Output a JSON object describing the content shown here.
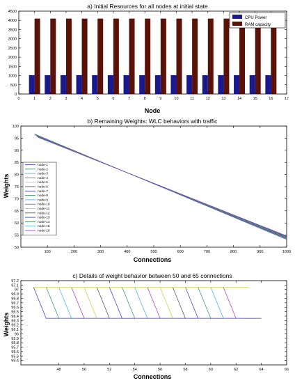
{
  "chart_data": [
    {
      "type": "bar",
      "title": "a) Initial Resources for all nodes at initial state",
      "xlabel": "Node",
      "ylabel": "",
      "xlim": [
        0,
        17
      ],
      "ylim": [
        0,
        4500
      ],
      "xticks": [
        "0",
        "1",
        "2",
        "3",
        "4",
        "5",
        "6",
        "7",
        "8",
        "9",
        "10",
        "11",
        "12",
        "13",
        "14",
        "15",
        "16",
        "17"
      ],
      "yticks": [
        "0",
        "500",
        "1000",
        "1500",
        "2000",
        "2500",
        "3000",
        "3500",
        "4000",
        "4500"
      ],
      "categories": [
        1,
        2,
        3,
        4,
        5,
        6,
        7,
        8,
        9,
        10,
        11,
        12,
        13,
        14,
        15,
        16
      ],
      "series": [
        {
          "name": "CPU Power",
          "color": "#1a1a8c",
          "values": [
            1024,
            1024,
            1024,
            1024,
            1024,
            1024,
            1024,
            1024,
            1024,
            1024,
            1024,
            1024,
            1024,
            1024,
            1024,
            1024
          ]
        },
        {
          "name": "RAM capacity",
          "color": "#5a1208",
          "values": [
            4096,
            4096,
            4096,
            4096,
            4096,
            4096,
            4096,
            4096,
            4096,
            4096,
            4096,
            4096,
            4096,
            4096,
            4096,
            4096
          ]
        }
      ],
      "legend": "top-right",
      "grid": false
    },
    {
      "type": "line",
      "title": "b) Remaining Weights: WLC behaviors  with  traffic",
      "xlabel": "Connections",
      "ylabel": "Weights",
      "xlim": [
        0,
        1000
      ],
      "ylim": [
        50,
        100
      ],
      "xticks": [
        "100",
        "200",
        "300",
        "400",
        "500",
        "600",
        "700",
        "800",
        "900",
        "1000"
      ],
      "yticks": [
        "50",
        "55",
        "60",
        "65",
        "70",
        "75",
        "80",
        "85",
        "90",
        "95",
        "100"
      ],
      "legend": "left-middle",
      "grid": false,
      "series": [
        {
          "name": "node-1",
          "color": "#3030c8",
          "x": [
            50,
            1000
          ],
          "y": [
            96.8,
            53.2
          ]
        },
        {
          "name": "node-2",
          "color": "#2e8b57",
          "x": [
            51,
            1000
          ],
          "y": [
            96.7,
            53.3
          ]
        },
        {
          "name": "node-3",
          "color": "#3aaed8",
          "x": [
            52,
            1000
          ],
          "y": [
            96.6,
            53.4
          ]
        },
        {
          "name": "node-4",
          "color": "#9b30c8",
          "x": [
            53,
            1000
          ],
          "y": [
            96.5,
            53.5
          ]
        },
        {
          "name": "node-5",
          "color": "#c8c830",
          "x": [
            54,
            1000
          ],
          "y": [
            96.4,
            53.6
          ]
        },
        {
          "name": "node-6",
          "color": "#444444",
          "x": [
            55,
            1000
          ],
          "y": [
            96.3,
            53.7
          ]
        },
        {
          "name": "node-7",
          "color": "#3030c8",
          "x": [
            56,
            1000
          ],
          "y": [
            96.2,
            53.8
          ]
        },
        {
          "name": "node-8",
          "color": "#2e8b57",
          "x": [
            57,
            1000
          ],
          "y": [
            96.1,
            53.9
          ]
        },
        {
          "name": "node-9",
          "color": "#3aaed8",
          "x": [
            58,
            1000
          ],
          "y": [
            96.0,
            54.0
          ]
        },
        {
          "name": "node-10",
          "color": "#9b30c8",
          "x": [
            59,
            1000
          ],
          "y": [
            95.9,
            54.1
          ]
        },
        {
          "name": "node-11",
          "color": "#c8c830",
          "x": [
            60,
            1000
          ],
          "y": [
            95.8,
            54.2
          ]
        },
        {
          "name": "node-12",
          "color": "#444444",
          "x": [
            61,
            1000
          ],
          "y": [
            95.7,
            54.3
          ]
        },
        {
          "name": "node-13",
          "color": "#3030c8",
          "x": [
            62,
            1000
          ],
          "y": [
            95.6,
            54.4
          ]
        },
        {
          "name": "node-14",
          "color": "#2e8b57",
          "x": [
            63,
            1000
          ],
          "y": [
            95.5,
            54.5
          ]
        },
        {
          "name": "node-15",
          "color": "#3aaed8",
          "x": [
            64,
            1000
          ],
          "y": [
            95.4,
            54.6
          ]
        },
        {
          "name": "node-16",
          "color": "#9b30c8",
          "x": [
            65,
            1000
          ],
          "y": [
            95.3,
            54.7
          ]
        }
      ]
    },
    {
      "type": "line",
      "title": "c) Details of weight behavior between 50 and 65 connections",
      "xlabel": "Connections",
      "ylabel": "Weights",
      "xlim": [
        45,
        66
      ],
      "ylim": [
        95.3,
        97.2
      ],
      "xticks": [
        "48",
        "50",
        "52",
        "54",
        "56",
        "58",
        "60",
        "62",
        "64",
        "66"
      ],
      "yticks": [
        "95.4",
        "95.5",
        "95.6",
        "95.7",
        "95.8",
        "95.9",
        "96",
        "96.1",
        "96.2",
        "96.3",
        "96.4",
        "96.5",
        "96.6",
        "96.7",
        "96.8",
        "96.9",
        "97",
        "97.1",
        "97.2"
      ],
      "grid": false,
      "series": [
        {
          "name": "node-1",
          "color": "#3030c8",
          "x": [
            46,
            47,
            64
          ],
          "y": [
            97.05,
            96.35,
            96.35
          ]
        },
        {
          "name": "node-2",
          "color": "#2e8b57",
          "x": [
            47,
            48,
            48
          ],
          "y": [
            97.05,
            96.35,
            96.35
          ]
        },
        {
          "name": "node-3",
          "color": "#3aaed8",
          "x": [
            48,
            49,
            49
          ],
          "y": [
            97.05,
            96.35,
            96.35
          ]
        },
        {
          "name": "node-4",
          "color": "#9b30c8",
          "x": [
            49,
            50,
            50
          ],
          "y": [
            97.05,
            96.35,
            96.35
          ]
        },
        {
          "name": "node-5",
          "color": "#c8c830",
          "x": [
            50,
            51,
            51
          ],
          "y": [
            97.05,
            96.35,
            96.35
          ]
        },
        {
          "name": "node-6",
          "color": "#444444",
          "x": [
            51,
            52,
            52
          ],
          "y": [
            97.05,
            96.35,
            96.35
          ]
        },
        {
          "name": "node-7",
          "color": "#3030c8",
          "x": [
            52,
            53,
            53
          ],
          "y": [
            97.05,
            96.35,
            96.35
          ]
        },
        {
          "name": "node-8",
          "color": "#2e8b57",
          "x": [
            53,
            54,
            54
          ],
          "y": [
            97.05,
            96.35,
            96.35
          ]
        },
        {
          "name": "node-9",
          "color": "#3aaed8",
          "x": [
            54,
            55,
            55
          ],
          "y": [
            97.05,
            96.35,
            96.35
          ]
        },
        {
          "name": "node-10",
          "color": "#9b30c8",
          "x": [
            55,
            56,
            56
          ],
          "y": [
            97.05,
            96.35,
            96.35
          ]
        },
        {
          "name": "node-11",
          "color": "#c8c830",
          "x": [
            56,
            57,
            57
          ],
          "y": [
            97.05,
            96.35,
            96.35
          ]
        },
        {
          "name": "node-12",
          "color": "#444444",
          "x": [
            57,
            58,
            58
          ],
          "y": [
            97.05,
            96.35,
            96.35
          ]
        },
        {
          "name": "node-13",
          "color": "#3030c8",
          "x": [
            58,
            59,
            59
          ],
          "y": [
            97.05,
            96.35,
            96.35
          ]
        },
        {
          "name": "node-14",
          "color": "#2e8b57",
          "x": [
            59,
            60,
            60
          ],
          "y": [
            97.05,
            96.35,
            96.35
          ]
        },
        {
          "name": "node-15",
          "color": "#3aaed8",
          "x": [
            60,
            61,
            61
          ],
          "y": [
            97.05,
            96.35,
            96.35
          ]
        },
        {
          "name": "node-16",
          "color": "#9b30c8",
          "x": [
            61,
            62,
            62
          ],
          "y": [
            97.05,
            96.35,
            96.35
          ]
        },
        {
          "name": "",
          "color": "#c8c830",
          "x": [
            46,
            63
          ],
          "y": [
            97.05,
            97.05
          ]
        }
      ]
    }
  ]
}
